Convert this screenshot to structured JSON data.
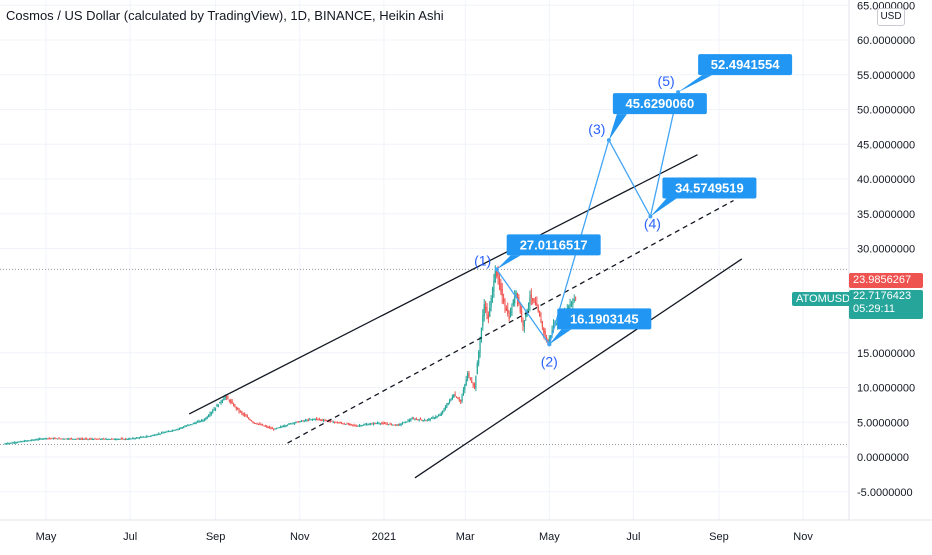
{
  "header": {
    "title": "Cosmos / US Dollar (calculated by TradingView), 1D, BINANCE, Heikin Ashi",
    "currency_button": "USD"
  },
  "price_tags": {
    "red_value": "23.9856267",
    "symbol": "ATOMUSD",
    "current_value": "22.7176423",
    "countdown": "05:29:11"
  },
  "colors": {
    "up": "#26a69a",
    "down": "#ef5350",
    "label_bg": "#2196f3",
    "wave_line": "#42a5f5",
    "channel": "#131722"
  },
  "chart_data": {
    "type": "candlestick",
    "symbol": "ATOMUSD",
    "timeframe": "1D",
    "style": "Heikin Ashi",
    "y_ticks": [
      "65.0000000",
      "60.0000000",
      "55.0000000",
      "50.0000000",
      "45.0000000",
      "40.0000000",
      "35.0000000",
      "30.0000000",
      "15.0000000",
      "10.0000000",
      "5.0000000",
      "0.0000000",
      "-5.0000000"
    ],
    "x_ticks": [
      "May",
      "Jul",
      "Sep",
      "Nov",
      "2021",
      "Mar",
      "May",
      "Jul",
      "Sep",
      "Nov"
    ],
    "ylim": [
      -7,
      66
    ],
    "price_path": [
      {
        "d": 0,
        "p": 1.9
      },
      {
        "d": 30,
        "p": 2.7
      },
      {
        "d": 60,
        "p": 2.6
      },
      {
        "d": 90,
        "p": 2.6
      },
      {
        "d": 105,
        "p": 3.0
      },
      {
        "d": 125,
        "p": 4.0
      },
      {
        "d": 145,
        "p": 5.4
      },
      {
        "d": 160,
        "p": 8.7
      },
      {
        "d": 170,
        "p": 6.6
      },
      {
        "d": 180,
        "p": 5.0
      },
      {
        "d": 195,
        "p": 4.0
      },
      {
        "d": 210,
        "p": 5.0
      },
      {
        "d": 225,
        "p": 5.5
      },
      {
        "d": 240,
        "p": 5.0
      },
      {
        "d": 255,
        "p": 4.5
      },
      {
        "d": 270,
        "p": 4.9
      },
      {
        "d": 285,
        "p": 4.6
      },
      {
        "d": 295,
        "p": 5.5
      },
      {
        "d": 305,
        "p": 5.3
      },
      {
        "d": 315,
        "p": 6.0
      },
      {
        "d": 325,
        "p": 9.0
      },
      {
        "d": 330,
        "p": 8.0
      },
      {
        "d": 335,
        "p": 12.0
      },
      {
        "d": 340,
        "p": 10.0
      },
      {
        "d": 347,
        "p": 22.0
      },
      {
        "d": 350,
        "p": 20.0
      },
      {
        "d": 355,
        "p": 27.0
      },
      {
        "d": 360,
        "p": 23.0
      },
      {
        "d": 365,
        "p": 20.0
      },
      {
        "d": 370,
        "p": 24.0
      },
      {
        "d": 375,
        "p": 19.0
      },
      {
        "d": 380,
        "p": 23.0
      },
      {
        "d": 385,
        "p": 21.5
      },
      {
        "d": 390,
        "p": 18.0
      },
      {
        "d": 393,
        "p": 16.2
      },
      {
        "d": 397,
        "p": 19.0
      },
      {
        "d": 402,
        "p": 20.0
      },
      {
        "d": 407,
        "p": 21.5
      },
      {
        "d": 412,
        "p": 22.7
      }
    ],
    "wave_labels": [
      {
        "label": "(1)",
        "value": "27.0116517",
        "d": 355,
        "p": 27.0
      },
      {
        "label": "(2)",
        "value": "16.1903145",
        "d": 393,
        "p": 16.2
      },
      {
        "label": "(3)",
        "value": "45.6290060",
        "d": 436,
        "p": 45.6
      },
      {
        "label": "(4)",
        "value": "34.5749519",
        "d": 466,
        "p": 34.6
      },
      {
        "label": "(5)",
        "value": "52.4941554",
        "d": 486,
        "p": 52.5
      }
    ],
    "wave_path": [
      [
        355,
        27.0
      ],
      [
        393,
        16.2
      ],
      [
        436,
        45.6
      ],
      [
        466,
        34.6
      ],
      [
        486,
        52.5
      ]
    ],
    "channel_lines": {
      "upper": [
        [
          133,
          6.2
        ],
        [
          500,
          43.5
        ]
      ],
      "middle_dashed": [
        [
          204,
          2.0
        ],
        [
          526,
          36.9
        ]
      ],
      "lower": [
        [
          296,
          -3.0
        ],
        [
          532,
          28.5
        ]
      ]
    },
    "horizontal_levels": [
      27.0,
      1.8
    ]
  }
}
